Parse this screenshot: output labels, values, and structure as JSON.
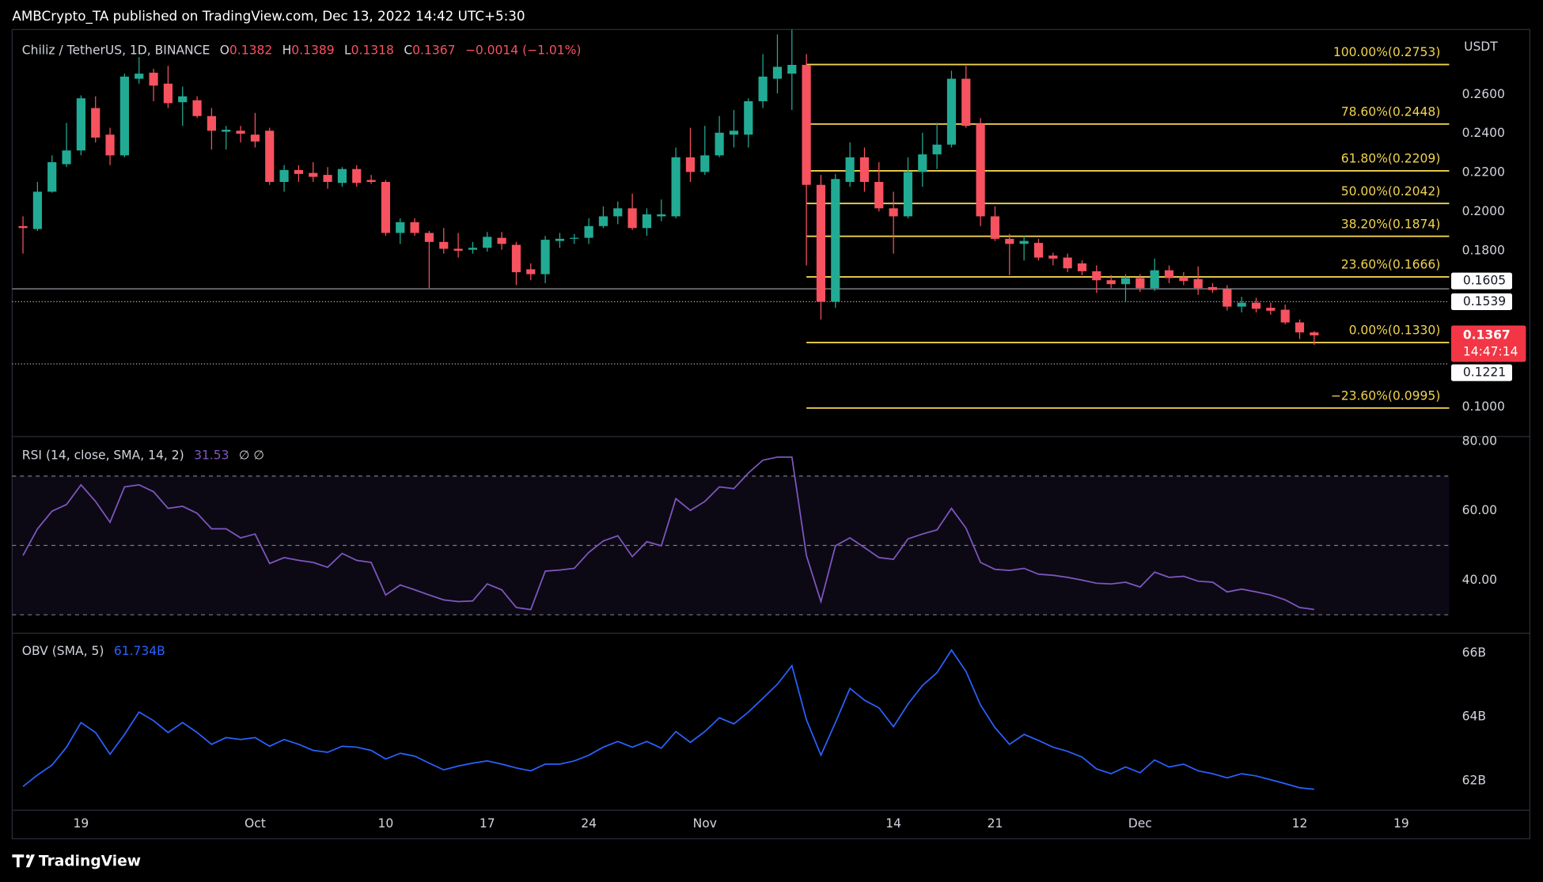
{
  "header": "AMBCrypto_TA published on TradingView.com, Dec 13, 2022 14:42 UTC+5:30",
  "footer": {
    "brand": "TradingView"
  },
  "chart_data": [
    {
      "type": "candlestick",
      "title": "Chiliz / TetherUS, 1D, BINANCE",
      "legend": {
        "labels": [
          "O",
          "H",
          "L",
          "C"
        ],
        "values": [
          0.1382,
          0.1389,
          0.1318,
          0.1367
        ],
        "change": "−0.0014 (−1.01%)"
      },
      "axis_label": "USDT",
      "up_color": "#22ab94",
      "down_color": "#f7525f",
      "grid": false,
      "categories": [
        null,
        null,
        null,
        null,
        "19",
        null,
        null,
        null,
        null,
        null,
        null,
        null,
        null,
        null,
        null,
        null,
        "Oct",
        null,
        null,
        null,
        null,
        null,
        null,
        null,
        null,
        "10",
        null,
        null,
        null,
        null,
        null,
        null,
        "17",
        null,
        null,
        null,
        null,
        null,
        null,
        "24",
        null,
        null,
        null,
        null,
        null,
        null,
        null,
        "Nov",
        null,
        null,
        null,
        null,
        null,
        null,
        null,
        null,
        null,
        null,
        null,
        null,
        "14",
        null,
        null,
        null,
        null,
        null,
        null,
        "21",
        null,
        null,
        null,
        null,
        null,
        null,
        null,
        null,
        null,
        "Dec",
        null,
        null,
        null,
        null,
        null,
        null,
        null,
        null,
        null,
        null,
        "12",
        null,
        null,
        null,
        null,
        null,
        null,
        "19",
        null,
        null,
        null
      ],
      "open": [
        0.1926,
        0.1911,
        0.2102,
        0.2243,
        0.2313,
        0.253,
        0.2394,
        0.2288,
        0.268,
        0.2711,
        0.2655,
        0.256,
        0.257,
        0.2489,
        0.2409,
        0.2414,
        0.2394,
        0.2414,
        0.2152,
        0.2213,
        0.2198,
        0.2188,
        0.2147,
        0.2218,
        0.2162,
        0.2152,
        0.1891,
        0.1946,
        0.1891,
        0.1845,
        0.181,
        0.1805,
        0.1815,
        0.1866,
        0.183,
        0.1705,
        0.168,
        0.185,
        0.1861,
        0.1866,
        0.1926,
        0.1976,
        0.2017,
        0.1916,
        0.1976,
        0.1976,
        0.2278,
        0.2203,
        0.2288,
        0.2394,
        0.2394,
        0.2565,
        0.268,
        0.2706,
        0.2751,
        0.2137,
        0.1539,
        0.2152,
        0.2278,
        0.2152,
        0.2017,
        0.1976,
        0.2203,
        0.2293,
        0.2343,
        0.268,
        0.2449,
        0.1976,
        0.1861,
        0.1835,
        0.184,
        0.1775,
        0.1765,
        0.1735,
        0.1695,
        0.1649,
        0.1629,
        0.166,
        0.1609,
        0.17,
        0.1665,
        0.1655,
        0.1614,
        0.1604,
        0.1514,
        0.1534,
        0.1508,
        0.1498,
        0.1433,
        0.1382,
        null,
        null,
        null,
        null,
        null,
        null,
        null,
        null,
        null
      ],
      "high": [
        0.1976,
        0.2152,
        0.2288,
        0.2454,
        0.2595,
        0.259,
        0.2429,
        0.2706,
        0.2791,
        0.2731,
        0.2746,
        0.264,
        0.259,
        0.253,
        0.2439,
        0.2439,
        0.2505,
        0.2429,
        0.2238,
        0.2238,
        0.2253,
        0.2228,
        0.2228,
        0.2238,
        0.2188,
        0.2162,
        0.1966,
        0.1966,
        0.1901,
        0.1916,
        0.1891,
        0.1845,
        0.1896,
        0.1896,
        0.1845,
        0.1735,
        0.1876,
        0.1891,
        0.1886,
        0.1966,
        0.2027,
        0.2052,
        0.2092,
        0.2017,
        0.2062,
        0.2328,
        0.2429,
        0.2439,
        0.2489,
        0.252,
        0.258,
        0.2806,
        0.2907,
        0.2932,
        0.2806,
        0.2188,
        0.2193,
        0.2354,
        0.2328,
        0.2253,
        0.2102,
        0.2278,
        0.2404,
        0.2454,
        0.2721,
        0.2746,
        0.2479,
        0.2027,
        0.1886,
        0.1876,
        0.1861,
        0.179,
        0.1785,
        0.175,
        0.1725,
        0.1675,
        0.168,
        0.168,
        0.176,
        0.1725,
        0.169,
        0.172,
        0.1634,
        0.1624,
        0.1564,
        0.1559,
        0.1534,
        0.1524,
        0.1448,
        0.1389,
        null,
        null,
        null,
        null,
        null,
        null,
        null,
        null,
        null
      ],
      "low": [
        0.1785,
        0.1901,
        0.2097,
        0.2228,
        0.2288,
        0.2354,
        0.2238,
        0.2278,
        0.2655,
        0.2565,
        0.253,
        0.2439,
        0.2479,
        0.2318,
        0.2318,
        0.2354,
        0.2328,
        0.2137,
        0.2102,
        0.2152,
        0.2152,
        0.2117,
        0.2127,
        0.2127,
        0.2142,
        0.1876,
        0.1835,
        0.1876,
        0.1609,
        0.1785,
        0.1765,
        0.1785,
        0.1795,
        0.1805,
        0.1624,
        0.1649,
        0.1634,
        0.1815,
        0.1835,
        0.1835,
        0.1916,
        0.1936,
        0.1906,
        0.1876,
        0.1951,
        0.1966,
        0.2152,
        0.2188,
        0.2278,
        0.2328,
        0.2328,
        0.253,
        0.2605,
        0.252,
        0.1725,
        0.1448,
        0.1508,
        0.2127,
        0.2102,
        0.2001,
        0.1785,
        0.1966,
        0.2127,
        0.2218,
        0.2328,
        0.2429,
        0.1926,
        0.185,
        0.1675,
        0.175,
        0.175,
        0.1725,
        0.169,
        0.1675,
        0.1584,
        0.1609,
        0.1539,
        0.1589,
        0.1594,
        0.1634,
        0.1624,
        0.1574,
        0.1584,
        0.1494,
        0.1484,
        0.1484,
        0.1473,
        0.1423,
        0.1348,
        0.1318,
        null,
        null,
        null,
        null,
        null,
        null,
        null,
        null,
        null
      ],
      "close": [
        0.1916,
        0.2102,
        0.2253,
        0.2313,
        0.258,
        0.2379,
        0.2288,
        0.2691,
        0.2706,
        0.2645,
        0.2555,
        0.259,
        0.2489,
        0.2414,
        0.2419,
        0.2399,
        0.2359,
        0.2152,
        0.2213,
        0.2193,
        0.2178,
        0.2152,
        0.2218,
        0.2147,
        0.2152,
        0.1891,
        0.1946,
        0.1891,
        0.1845,
        0.181,
        0.18,
        0.1815,
        0.1871,
        0.1835,
        0.169,
        0.168,
        0.1856,
        0.1861,
        0.1866,
        0.1926,
        0.1976,
        0.2017,
        0.1916,
        0.1986,
        0.1986,
        0.2278,
        0.2203,
        0.2288,
        0.2404,
        0.2414,
        0.2565,
        0.2691,
        0.2741,
        0.2751,
        0.2137,
        0.1539,
        0.2167,
        0.2278,
        0.2152,
        0.2017,
        0.1976,
        0.2203,
        0.2293,
        0.2343,
        0.268,
        0.2439,
        0.1976,
        0.1861,
        0.1835,
        0.185,
        0.1765,
        0.176,
        0.171,
        0.1695,
        0.1649,
        0.1629,
        0.166,
        0.1609,
        0.17,
        0.166,
        0.1645,
        0.1609,
        0.1599,
        0.1514,
        0.1534,
        0.1503,
        0.1493,
        0.1433,
        0.1382,
        0.1367,
        null,
        null,
        null,
        null,
        null,
        null,
        null,
        null,
        null
      ],
      "ylim": [
        0.0854,
        0.2932
      ],
      "yticks": [
        {
          "value": 0.1,
          "label": "0.1000"
        },
        {
          "value": 0.18,
          "label": "0.1800"
        },
        {
          "value": 0.2,
          "label": "0.2000"
        },
        {
          "value": 0.22,
          "label": "0.2200"
        },
        {
          "value": 0.24,
          "label": "0.2400"
        },
        {
          "value": 0.26,
          "label": "0.2600"
        }
      ],
      "fib_color": "#f0d34f",
      "fib_levels": [
        {
          "value": 0.2753,
          "label": "100.00%(0.2753)"
        },
        {
          "value": 0.2448,
          "label": "78.60%(0.2448)"
        },
        {
          "value": 0.2209,
          "label": "61.80%(0.2209)"
        },
        {
          "value": 0.2042,
          "label": "50.00%(0.2042)"
        },
        {
          "value": 0.1874,
          "label": "38.20%(0.1874)"
        },
        {
          "value": 0.1666,
          "label": "23.60%(0.1666)"
        },
        {
          "value": 0.133,
          "label": "0.00%(0.1330)"
        },
        {
          "value": 0.0995,
          "label": "−23.60%(0.0995)"
        }
      ],
      "price_lines": [
        {
          "value": 0.1605,
          "style": "solid"
        },
        {
          "value": 0.1539,
          "style": "dotted"
        },
        {
          "value": 0.1221,
          "style": "dotted"
        }
      ],
      "last_price": {
        "value": 0.1367,
        "countdown": "14:47:14"
      }
    },
    {
      "type": "line",
      "title": "RSI (14, close, SMA, 14, 2)",
      "readout": 31.53,
      "flags": "∅ ∅",
      "color": "#7e57c2",
      "values": [
        47.1,
        54.8,
        59.9,
        61.8,
        67.5,
        62.7,
        56.7,
        66.9,
        67.5,
        65.5,
        60.7,
        61.3,
        59.3,
        54.8,
        54.8,
        52.2,
        53.3,
        44.8,
        46.5,
        45.7,
        45.1,
        43.7,
        47.7,
        45.7,
        45.1,
        35.7,
        38.6,
        37.2,
        35.7,
        34.3,
        33.8,
        34.0,
        38.9,
        37.2,
        32.1,
        31.5,
        42.6,
        42.9,
        43.4,
        48.0,
        51.3,
        52.8,
        46.8,
        51.1,
        49.9,
        63.5,
        60.1,
        62.7,
        66.9,
        66.4,
        70.9,
        74.6,
        75.5,
        75.5,
        47.1,
        33.8,
        49.9,
        52.2,
        49.4,
        46.5,
        46.0,
        51.9,
        53.3,
        54.5,
        60.7,
        55.0,
        45.1,
        43.1,
        42.8,
        43.4,
        41.7,
        41.4,
        40.8,
        40.0,
        39.1,
        38.9,
        39.4,
        38.0,
        42.3,
        40.8,
        41.1,
        39.7,
        39.4,
        36.6,
        37.4,
        36.6,
        35.7,
        34.3,
        32.1,
        31.53,
        null,
        null,
        null,
        null,
        null,
        null,
        null,
        null,
        null
      ],
      "levels": [
        70,
        50,
        30
      ],
      "ylim": [
        24.96,
        81.13
      ],
      "yticks": [
        {
          "value": 40,
          "label": "40.00"
        },
        {
          "value": 60,
          "label": "60.00"
        },
        {
          "value": 80,
          "label": "80.00"
        }
      ]
    },
    {
      "type": "line",
      "title": "OBV (SMA, 5)",
      "readout": {
        "value": 61.734,
        "label": "61.734B"
      },
      "color": "#2962ff",
      "values": [
        61.82,
        62.18,
        62.49,
        63.05,
        63.82,
        63.51,
        62.83,
        63.45,
        64.15,
        63.88,
        63.51,
        63.82,
        63.51,
        63.14,
        63.35,
        63.29,
        63.35,
        63.08,
        63.29,
        63.14,
        62.95,
        62.89,
        63.08,
        63.05,
        62.95,
        62.68,
        62.86,
        62.77,
        62.55,
        62.34,
        62.46,
        62.55,
        62.62,
        62.52,
        62.4,
        62.31,
        62.52,
        62.52,
        62.62,
        62.8,
        63.05,
        63.23,
        63.05,
        63.23,
        63.02,
        63.54,
        63.2,
        63.54,
        63.97,
        63.78,
        64.15,
        64.58,
        65.02,
        65.6,
        63.91,
        62.8,
        63.82,
        64.89,
        64.52,
        64.28,
        63.69,
        64.4,
        64.98,
        65.38,
        66.09,
        65.42,
        64.37,
        63.66,
        63.14,
        63.45,
        63.26,
        63.05,
        62.92,
        62.74,
        62.37,
        62.22,
        62.43,
        62.25,
        62.65,
        62.43,
        62.52,
        62.31,
        62.22,
        62.09,
        62.22,
        62.15,
        62.03,
        61.91,
        61.78,
        61.734,
        null,
        null,
        null,
        null,
        null,
        null,
        null,
        null,
        null
      ],
      "ylim": [
        61.108,
        66.585
      ],
      "yticks": [
        {
          "value": 62,
          "label": "62B"
        },
        {
          "value": 64,
          "label": "64B"
        },
        {
          "value": 66,
          "label": "66B"
        }
      ]
    }
  ]
}
